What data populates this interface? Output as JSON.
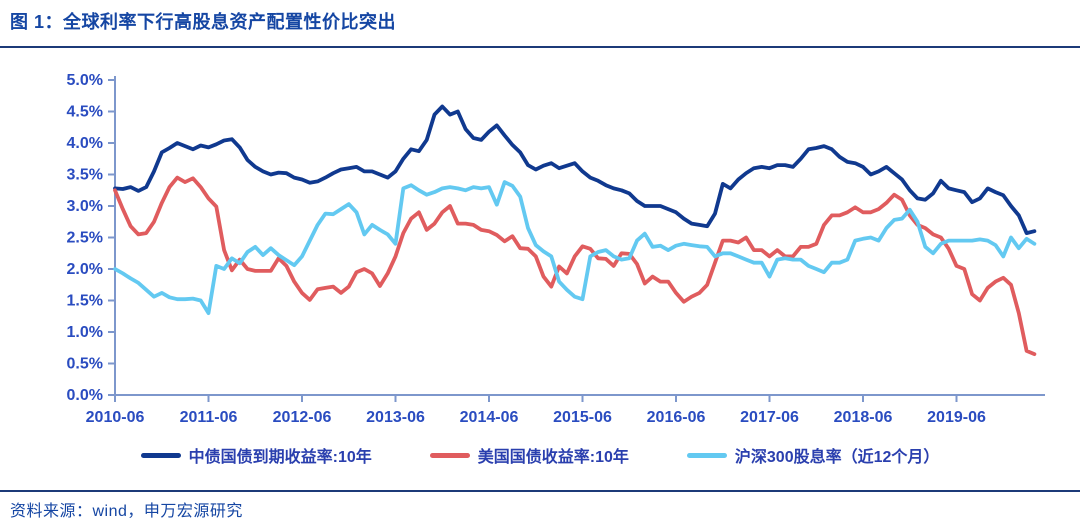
{
  "figure": {
    "title": "图 1：全球利率下行高股息资产配置性价比突出",
    "source": "资料来源：wind，申万宏源研究"
  },
  "colors": {
    "title_text": "#1546a3",
    "divider_rule": "#1c3a78",
    "axis_line": "#7d97cc",
    "axis_tick_label": "#2a4cc0",
    "legend_text": "#2a3fae",
    "series_china_bond": "#10398f",
    "series_us_bond": "#e05c5e",
    "series_csi300": "#63c9f1"
  },
  "chart_data": {
    "type": "line",
    "frequency": "monthly",
    "x_start": "2010-06",
    "x_end": "2020-04",
    "x_tick_labels": [
      "2010-06",
      "2011-06",
      "2012-06",
      "2013-06",
      "2014-06",
      "2015-06",
      "2016-06",
      "2017-06",
      "2018-06",
      "2019-06"
    ],
    "y_tick_labels": [
      "0.0%",
      "0.5%",
      "1.0%",
      "1.5%",
      "2.0%",
      "2.5%",
      "3.0%",
      "3.5%",
      "4.0%",
      "4.5%",
      "5.0%"
    ],
    "ylim": [
      0,
      5
    ],
    "grid": false,
    "legend_position": "bottom",
    "series": [
      {
        "key": "china-10y-yield",
        "name": "中债国债到期收益率:10年",
        "color": "#10398f",
        "values": [
          3.28,
          3.27,
          3.3,
          3.24,
          3.3,
          3.55,
          3.85,
          3.92,
          4.0,
          3.95,
          3.9,
          3.96,
          3.93,
          3.98,
          4.04,
          4.06,
          3.93,
          3.73,
          3.62,
          3.55,
          3.5,
          3.53,
          3.52,
          3.45,
          3.42,
          3.37,
          3.39,
          3.45,
          3.52,
          3.58,
          3.6,
          3.62,
          3.55,
          3.55,
          3.5,
          3.45,
          3.55,
          3.75,
          3.9,
          3.87,
          4.05,
          4.45,
          4.58,
          4.45,
          4.5,
          4.22,
          4.08,
          4.05,
          4.18,
          4.28,
          4.12,
          3.97,
          3.85,
          3.65,
          3.58,
          3.64,
          3.68,
          3.6,
          3.64,
          3.68,
          3.55,
          3.45,
          3.4,
          3.33,
          3.28,
          3.25,
          3.2,
          3.08,
          3.0,
          3.0,
          3.0,
          2.95,
          2.9,
          2.8,
          2.72,
          2.7,
          2.68,
          2.88,
          3.35,
          3.28,
          3.42,
          3.52,
          3.6,
          3.62,
          3.6,
          3.65,
          3.65,
          3.62,
          3.75,
          3.9,
          3.92,
          3.95,
          3.9,
          3.78,
          3.7,
          3.68,
          3.62,
          3.5,
          3.55,
          3.62,
          3.52,
          3.42,
          3.25,
          3.12,
          3.1,
          3.2,
          3.4,
          3.28,
          3.25,
          3.22,
          3.06,
          3.12,
          3.28,
          3.22,
          3.17,
          3.0,
          2.85,
          2.57,
          2.6
        ]
      },
      {
        "key": "us-10y-yield",
        "name": "美国国债收益率:10年",
        "color": "#e05c5e",
        "values": [
          3.25,
          2.95,
          2.68,
          2.55,
          2.57,
          2.75,
          3.05,
          3.3,
          3.45,
          3.38,
          3.44,
          3.3,
          3.12,
          2.99,
          2.3,
          1.98,
          2.15,
          2.0,
          1.97,
          1.97,
          1.97,
          2.17,
          2.05,
          1.8,
          1.62,
          1.51,
          1.68,
          1.7,
          1.72,
          1.62,
          1.72,
          1.95,
          2.0,
          1.93,
          1.73,
          1.93,
          2.2,
          2.57,
          2.8,
          2.9,
          2.62,
          2.72,
          2.9,
          3.0,
          2.72,
          2.72,
          2.7,
          2.62,
          2.6,
          2.54,
          2.44,
          2.52,
          2.33,
          2.32,
          2.2,
          1.88,
          1.72,
          2.04,
          1.93,
          2.2,
          2.36,
          2.32,
          2.17,
          2.16,
          2.05,
          2.25,
          2.24,
          2.08,
          1.77,
          1.88,
          1.8,
          1.8,
          1.62,
          1.48,
          1.56,
          1.62,
          1.75,
          2.1,
          2.45,
          2.45,
          2.42,
          2.5,
          2.3,
          2.3,
          2.2,
          2.3,
          2.2,
          2.2,
          2.35,
          2.35,
          2.4,
          2.7,
          2.85,
          2.85,
          2.9,
          2.98,
          2.9,
          2.9,
          2.95,
          3.05,
          3.18,
          3.1,
          2.85,
          2.7,
          2.65,
          2.55,
          2.5,
          2.32,
          2.05,
          2.0,
          1.6,
          1.5,
          1.7,
          1.8,
          1.86,
          1.75,
          1.3,
          0.7,
          0.65
        ]
      },
      {
        "key": "csi300-dividend-yield",
        "name": "沪深300股息率（近12个月）",
        "color": "#63c9f1",
        "values": [
          2.0,
          1.93,
          1.85,
          1.78,
          1.67,
          1.56,
          1.62,
          1.55,
          1.52,
          1.52,
          1.53,
          1.5,
          1.3,
          2.05,
          2.0,
          2.17,
          2.09,
          2.27,
          2.35,
          2.22,
          2.33,
          2.22,
          2.14,
          2.06,
          2.2,
          2.45,
          2.7,
          2.88,
          2.87,
          2.95,
          3.03,
          2.9,
          2.55,
          2.7,
          2.62,
          2.55,
          2.4,
          3.28,
          3.33,
          3.25,
          3.18,
          3.22,
          3.28,
          3.3,
          3.28,
          3.25,
          3.3,
          3.28,
          3.3,
          3.02,
          3.38,
          3.32,
          3.15,
          2.65,
          2.38,
          2.28,
          2.2,
          1.8,
          1.67,
          1.56,
          1.52,
          2.2,
          2.27,
          2.3,
          2.2,
          2.15,
          2.17,
          2.45,
          2.56,
          2.35,
          2.37,
          2.3,
          2.37,
          2.4,
          2.38,
          2.36,
          2.35,
          2.2,
          2.25,
          2.25,
          2.2,
          2.15,
          2.1,
          2.1,
          1.88,
          2.15,
          2.17,
          2.15,
          2.15,
          2.05,
          2.0,
          1.95,
          2.1,
          2.1,
          2.15,
          2.45,
          2.48,
          2.5,
          2.45,
          2.65,
          2.78,
          2.8,
          2.94,
          2.75,
          2.35,
          2.25,
          2.4,
          2.45,
          2.45,
          2.45,
          2.45,
          2.47,
          2.45,
          2.38,
          2.2,
          2.5,
          2.33,
          2.48,
          2.4
        ]
      }
    ]
  }
}
